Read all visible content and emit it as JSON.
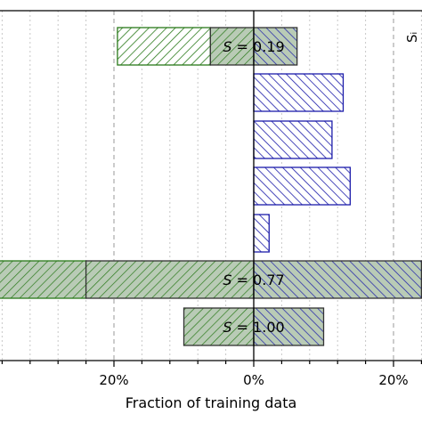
{
  "chart_data": {
    "type": "bar",
    "orientation": "horizontal",
    "xlabel": "Fraction of training data",
    "xticks": [
      {
        "value": -20,
        "label": "20%"
      },
      {
        "value": 0,
        "label": "0%"
      },
      {
        "value": 20,
        "label": "20%"
      }
    ],
    "xlim": [
      -36.5,
      24
    ],
    "grid": "vertical-dotted",
    "colors": {
      "left": "#2a7a1a",
      "right": "#1c1caa",
      "overlay": "#7a9a78"
    },
    "rows": [
      {
        "left": 19.5,
        "right": 6.2,
        "s_label": "S = 0.19",
        "s_italic": "S",
        "s_rest": " = 0.19"
      },
      {
        "left": 0,
        "right": 12.8,
        "s_label": ""
      },
      {
        "left": 0,
        "right": 11.2,
        "s_label": ""
      },
      {
        "left": 0,
        "right": 13.8,
        "s_label": ""
      },
      {
        "left": 0,
        "right": 2.2,
        "s_label": ""
      },
      {
        "left": 36.5,
        "right": 24,
        "s_label": "S = 0.77",
        "s_italic": "S",
        "s_rest": " = 0.77"
      },
      {
        "left": 10.0,
        "right": 10.0,
        "s_label": "S = 1.00",
        "s_italic": "S",
        "s_rest": " = 1.00"
      }
    ],
    "overlap_rows": [
      0,
      5,
      6
    ]
  }
}
